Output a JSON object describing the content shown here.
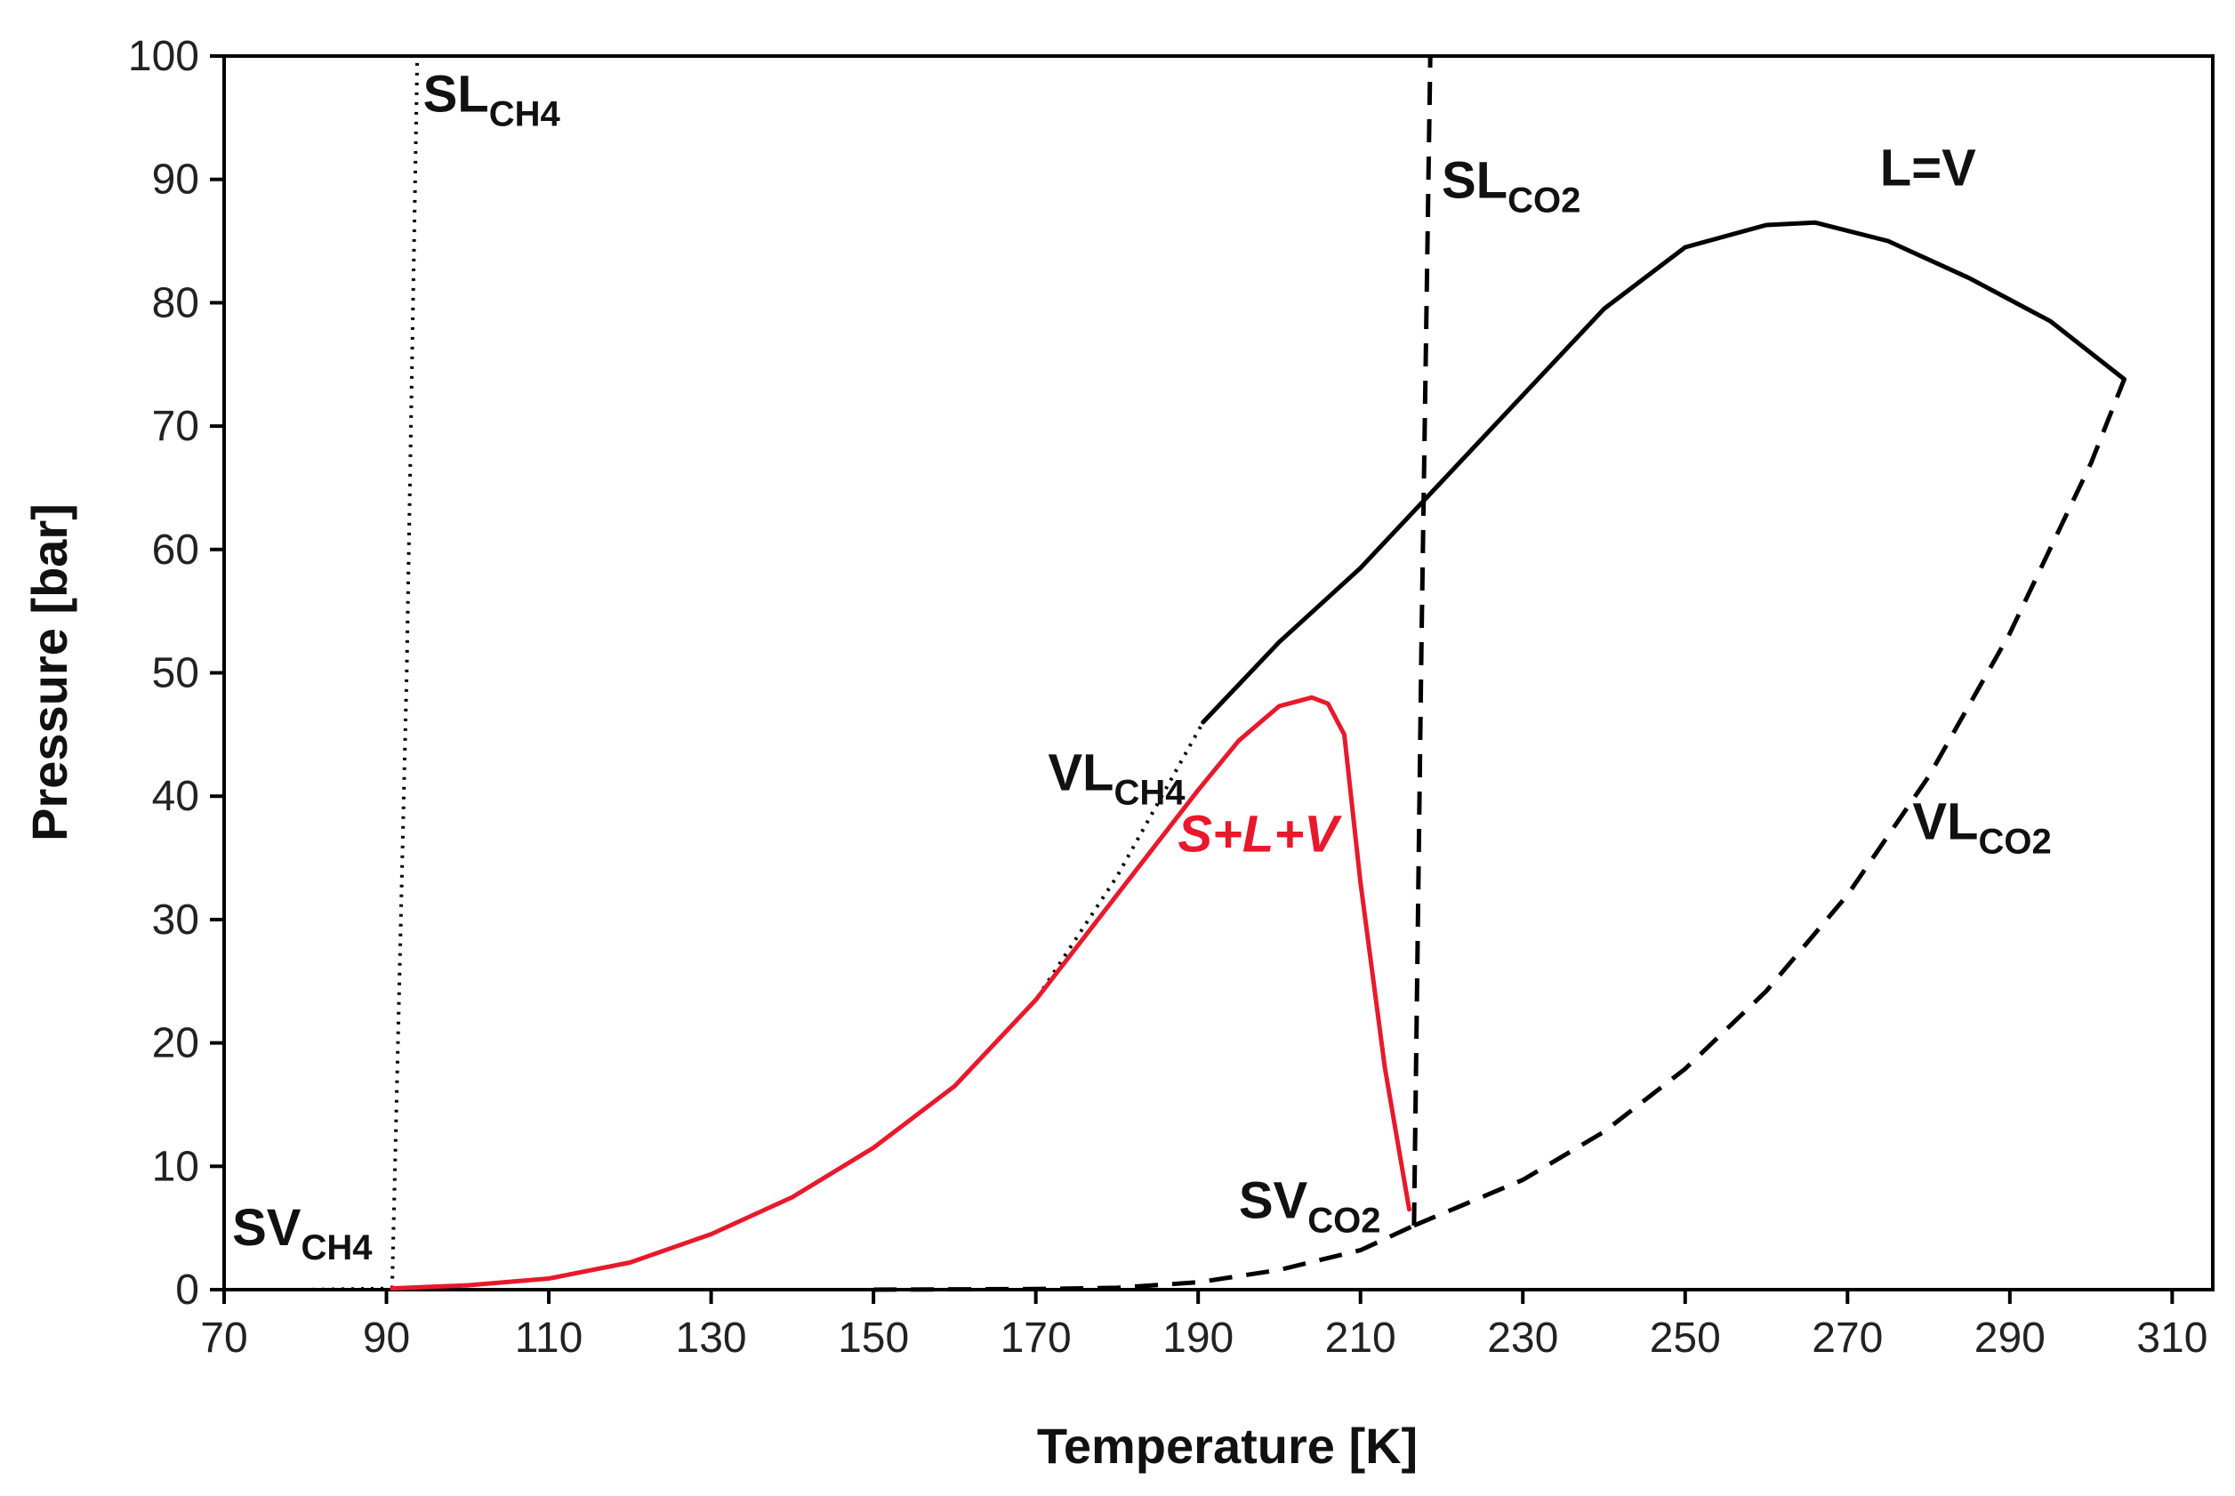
{
  "chart_data": {
    "type": "line",
    "title": "",
    "xlabel": "Temperature [K]",
    "ylabel": "Pressure [bar]",
    "xlim": [
      70,
      315
    ],
    "ylim": [
      0,
      100
    ],
    "xticks": [
      70,
      90,
      110,
      130,
      150,
      170,
      190,
      210,
      230,
      250,
      270,
      290,
      310
    ],
    "yticks": [
      0,
      10,
      20,
      30,
      40,
      50,
      60,
      70,
      80,
      90,
      100
    ],
    "grid": false,
    "legend": "none",
    "colors": {
      "black": "#000000",
      "red": "#e8192c"
    },
    "series": [
      {
        "name": "SV_CH4",
        "style": "dotted",
        "color": "#000000",
        "x": [
          70,
          80,
          90.7
        ],
        "y": [
          0.0,
          0.0,
          0.1
        ]
      },
      {
        "name": "SL_CH4",
        "style": "dotted",
        "color": "#000000",
        "x": [
          90.7,
          92.5,
          93.8
        ],
        "y": [
          0.1,
          50,
          100
        ]
      },
      {
        "name": "VL_CH4",
        "style": "dotted",
        "color": "#000000",
        "x": [
          90.7,
          100,
          110,
          120,
          130,
          140,
          150,
          160,
          170,
          180,
          190.6
        ],
        "y": [
          0.1,
          0.35,
          0.9,
          2.2,
          4.5,
          7.5,
          11.5,
          16.5,
          23.5,
          33.5,
          46.0
        ]
      },
      {
        "name": "L=V",
        "style": "solid",
        "color": "#000000",
        "x": [
          190.6,
          200,
          210,
          220,
          230,
          240,
          250,
          260,
          266,
          275,
          285,
          295,
          304.1
        ],
        "y": [
          46.0,
          52.5,
          58.5,
          65.5,
          72.5,
          79.5,
          84.5,
          86.3,
          86.5,
          85.0,
          82.0,
          78.5,
          73.8
        ]
      },
      {
        "name": "S+L+V",
        "style": "solid",
        "color": "#e8192c",
        "x": [
          90.7,
          100,
          110,
          120,
          130,
          140,
          150,
          160,
          170,
          180,
          190,
          195,
          200,
          204,
          206,
          208,
          210,
          213,
          216
        ],
        "y": [
          0.1,
          0.35,
          0.9,
          2.2,
          4.5,
          7.5,
          11.5,
          16.5,
          23.5,
          32.0,
          40.5,
          44.5,
          47.3,
          48.0,
          47.5,
          45.0,
          33.0,
          18.0,
          6.5
        ]
      },
      {
        "name": "SL_CO2",
        "style": "dashed",
        "color": "#000000",
        "x": [
          216.6,
          217.5,
          218.6
        ],
        "y": [
          5.2,
          52,
          100
        ]
      },
      {
        "name": "SV_CO2",
        "style": "dashed",
        "color": "#000000",
        "x": [
          150,
          170,
          180,
          190,
          200,
          210,
          216.6
        ],
        "y": [
          0.0,
          0.05,
          0.15,
          0.6,
          1.6,
          3.2,
          5.2
        ]
      },
      {
        "name": "VL_CO2",
        "style": "dashed",
        "color": "#000000",
        "x": [
          216.6,
          230,
          240,
          250,
          260,
          270,
          280,
          290,
          300,
          304.1
        ],
        "y": [
          5.2,
          8.9,
          12.8,
          17.9,
          24.2,
          32.0,
          41.6,
          53.2,
          67.0,
          73.8
        ]
      }
    ],
    "annotations": [
      {
        "id": "sl_ch4",
        "main": "SL",
        "sub": "CH4",
        "x": 94.5,
        "y": 95.5
      },
      {
        "id": "sl_co2",
        "main": "SL",
        "sub": "CO2",
        "x": 220,
        "y": 88.5
      },
      {
        "id": "lv",
        "main": "L=V",
        "sub": "",
        "x": 274,
        "y": 89.5
      },
      {
        "id": "vl_ch4",
        "main": "VL",
        "sub": "CH4",
        "x": 171.5,
        "y": 40.5
      },
      {
        "id": "slv",
        "main": "S+L+V",
        "sub": "",
        "x": 187.5,
        "y": 35.5
      },
      {
        "id": "vl_co2",
        "main": "VL",
        "sub": "CO2",
        "x": 278,
        "y": 36.5
      },
      {
        "id": "sv_co2",
        "main": "SV",
        "sub": "CO2",
        "x": 195,
        "y": 5.8
      },
      {
        "id": "sv_ch4",
        "main": "SV",
        "sub": "CH4",
        "x": 71,
        "y": 3.6
      }
    ]
  }
}
